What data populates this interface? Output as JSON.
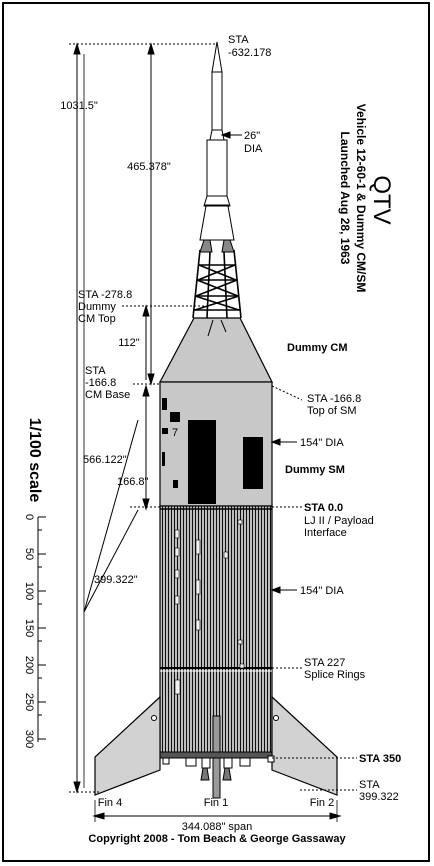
{
  "title": {
    "name": "QTV",
    "line1": "Vehicle 12-60-1 & Dummy CM/SM",
    "line2": "Launched Aug 28, 1963"
  },
  "scale": {
    "title": "1/100 scale",
    "ticks": [
      "0",
      "50",
      "100",
      "150",
      "200",
      "250",
      "300"
    ]
  },
  "dimensions": {
    "overall_length": "1031.5\"",
    "tower_length": "465.378\"",
    "cm_height": "112\"",
    "sm_height": "166.8\"",
    "to_cm_base": "566.122\"",
    "to_fins": "399.322\"",
    "tower_dia": "26\"",
    "tower_dia_unit": "DIA",
    "sm_dia": "154\" DIA",
    "lj_dia": "154\" DIA",
    "span": "344.088\" span"
  },
  "stations": {
    "nose": [
      "STA",
      "-632.178"
    ],
    "cm_top": [
      "STA -278.8",
      "Dummy",
      "CM Top"
    ],
    "cm_base": [
      "STA",
      "-166.8",
      "CM Base"
    ],
    "sm_top": [
      "STA -166.8",
      "Top of SM"
    ],
    "interface": [
      "STA  0.0",
      "LJ II / Payload",
      "Interface"
    ],
    "splice": [
      "STA  227",
      "Splice Rings"
    ],
    "sta350": "STA  350",
    "sta399": [
      "STA",
      "399.322"
    ]
  },
  "labels": {
    "dummy_cm": "Dummy CM",
    "dummy_sm": "Dummy SM",
    "fin4": "Fin 4",
    "fin1": "Fin 1",
    "fin2": "Fin 2",
    "sm_marking": "7"
  },
  "copyright": "Copyright 2008  -  Tom Beach & George Gassaway",
  "colors": {
    "module_gray": "#c8c8c8",
    "booster_gray": "#b4b4b4",
    "fin_gray": "#d2d2d2",
    "ink": "#000000"
  }
}
